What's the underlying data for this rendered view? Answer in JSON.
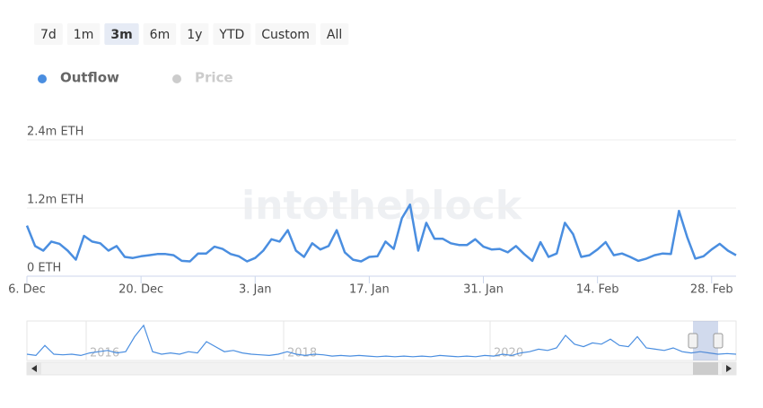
{
  "range_selector": {
    "buttons": [
      "7d",
      "1m",
      "3m",
      "6m",
      "1y",
      "YTD",
      "Custom",
      "All"
    ],
    "selected": 2
  },
  "chart_data": {
    "type": "line",
    "watermark": "intotheblock",
    "categories": [
      "6. Dec",
      null,
      null,
      null,
      null,
      null,
      null,
      null,
      null,
      null,
      null,
      null,
      null,
      null,
      "20. Dec",
      null,
      null,
      null,
      null,
      null,
      null,
      null,
      null,
      null,
      null,
      null,
      null,
      null,
      "3. Jan",
      null,
      null,
      null,
      null,
      null,
      null,
      null,
      null,
      null,
      null,
      null,
      null,
      null,
      "17. Jan",
      null,
      null,
      null,
      null,
      null,
      null,
      null,
      null,
      null,
      null,
      null,
      null,
      null,
      "31. Jan",
      null,
      null,
      null,
      null,
      null,
      null,
      null,
      null,
      null,
      null,
      null,
      null,
      null,
      "14. Feb",
      null,
      null,
      null,
      null,
      null,
      null,
      null,
      null,
      null,
      null,
      null,
      null,
      null,
      "28. Feb",
      null,
      null,
      null
    ],
    "series": [
      {
        "name": "Outflow",
        "color": "#4a8ee0",
        "values": [
          890000,
          530000,
          450000,
          610000,
          570000,
          450000,
          290000,
          710000,
          610000,
          580000,
          450000,
          530000,
          340000,
          320000,
          350000,
          370000,
          390000,
          390000,
          370000,
          270000,
          260000,
          400000,
          400000,
          520000,
          480000,
          390000,
          350000,
          260000,
          320000,
          450000,
          650000,
          610000,
          810000,
          450000,
          340000,
          580000,
          470000,
          530000,
          810000,
          420000,
          290000,
          260000,
          340000,
          350000,
          610000,
          480000,
          1020000,
          1260000,
          450000,
          940000,
          660000,
          660000,
          580000,
          550000,
          550000,
          650000,
          520000,
          470000,
          480000,
          420000,
          530000,
          390000,
          270000,
          600000,
          340000,
          400000,
          940000,
          740000,
          340000,
          370000,
          470000,
          600000,
          370000,
          400000,
          340000,
          270000,
          310000,
          370000,
          400000,
          390000,
          1150000,
          690000,
          310000,
          350000,
          470000,
          570000,
          450000,
          370000
        ]
      },
      {
        "name": "Price",
        "color": "#cccccc",
        "visible": false
      }
    ],
    "ylim": [
      0,
      2400000
    ],
    "yticks": [
      {
        "value": 0,
        "label": "0 ETH"
      },
      {
        "value": 1200000,
        "label": "1.2m ETH"
      },
      {
        "value": 2400000,
        "label": "2.4m ETH"
      }
    ],
    "grid": true,
    "navigator": {
      "categories": [
        null,
        null,
        null,
        null,
        null,
        null,
        null,
        "2016",
        null,
        null,
        null,
        null,
        null,
        null,
        null,
        null,
        null,
        null,
        null,
        null,
        null,
        null,
        null,
        null,
        null,
        null,
        null,
        null,
        null,
        "2018",
        null,
        null,
        null,
        null,
        null,
        null,
        null,
        null,
        null,
        null,
        null,
        null,
        null,
        null,
        null,
        null,
        null,
        null,
        null,
        null,
        null,
        null,
        "2020",
        null,
        null,
        null,
        null,
        null,
        null,
        null,
        null,
        null,
        null,
        null,
        null,
        null,
        null,
        null,
        null,
        null,
        null,
        null,
        null,
        null,
        null,
        null,
        null,
        null,
        null,
        null
      ],
      "values": [
        500000,
        400000,
        1200000,
        500000,
        450000,
        500000,
        400000,
        600000,
        700000,
        800000,
        600000,
        700000,
        1900000,
        2800000,
        700000,
        500000,
        600000,
        500000,
        700000,
        600000,
        1500000,
        1100000,
        700000,
        800000,
        600000,
        500000,
        450000,
        400000,
        500000,
        700000,
        500000,
        400000,
        500000,
        450000,
        350000,
        400000,
        350000,
        400000,
        350000,
        300000,
        350000,
        300000,
        350000,
        300000,
        350000,
        300000,
        400000,
        350000,
        300000,
        350000,
        300000,
        400000,
        350000,
        500000,
        400000,
        600000,
        700000,
        900000,
        800000,
        1000000,
        2000000,
        1300000,
        1100000,
        1400000,
        1300000,
        1700000,
        1200000,
        1100000,
        1900000,
        1000000,
        900000,
        800000,
        1000000,
        700000,
        600000,
        700000,
        600000,
        500000,
        550000,
        500000
      ],
      "ylim": [
        0,
        3000000
      ],
      "color": "#4a8ee0"
    }
  }
}
